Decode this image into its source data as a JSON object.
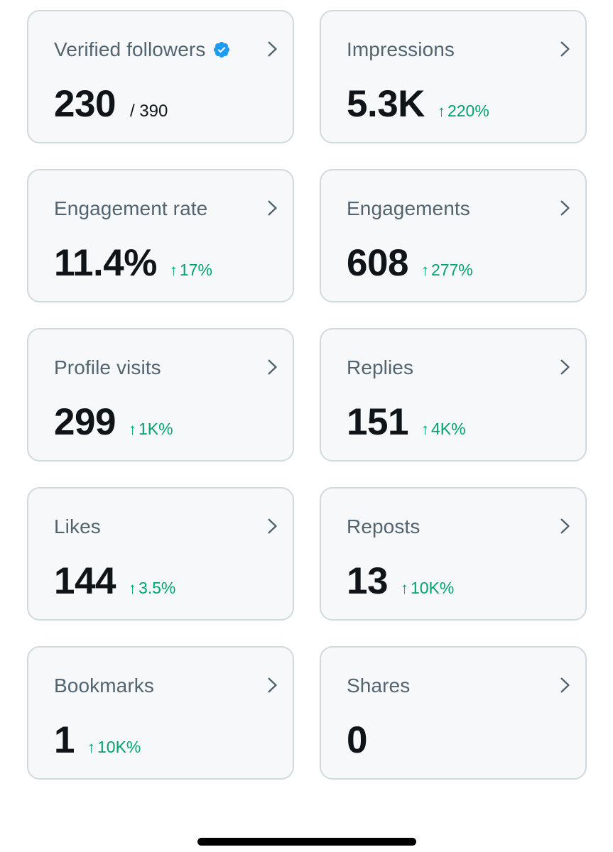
{
  "colors": {
    "card_background": "#f7f8f9",
    "card_border": "#cfd9de",
    "title_text": "#536471",
    "value_text": "#0f1419",
    "positive_delta": "#00a36c",
    "verified_badge": "#1d9bf0"
  },
  "metrics": [
    {
      "title": "Verified followers",
      "value": "230",
      "total": "/ 390",
      "delta": "",
      "icon": "verified-badge-icon"
    },
    {
      "title": "Impressions",
      "value": "5.3K",
      "delta": "220%"
    },
    {
      "title": "Engagement rate",
      "value": "11.4%",
      "delta": "17%"
    },
    {
      "title": "Engagements",
      "value": "608",
      "delta": "277%"
    },
    {
      "title": "Profile visits",
      "value": "299",
      "delta": "1K%"
    },
    {
      "title": "Replies",
      "value": "151",
      "delta": "4K%"
    },
    {
      "title": "Likes",
      "value": "144",
      "delta": "3.5%"
    },
    {
      "title": "Reposts",
      "value": "13",
      "delta": "10K%"
    },
    {
      "title": "Bookmarks",
      "value": "1",
      "delta": "10K%"
    },
    {
      "title": "Shares",
      "value": "0",
      "delta": ""
    }
  ],
  "delta_arrow": "↑"
}
